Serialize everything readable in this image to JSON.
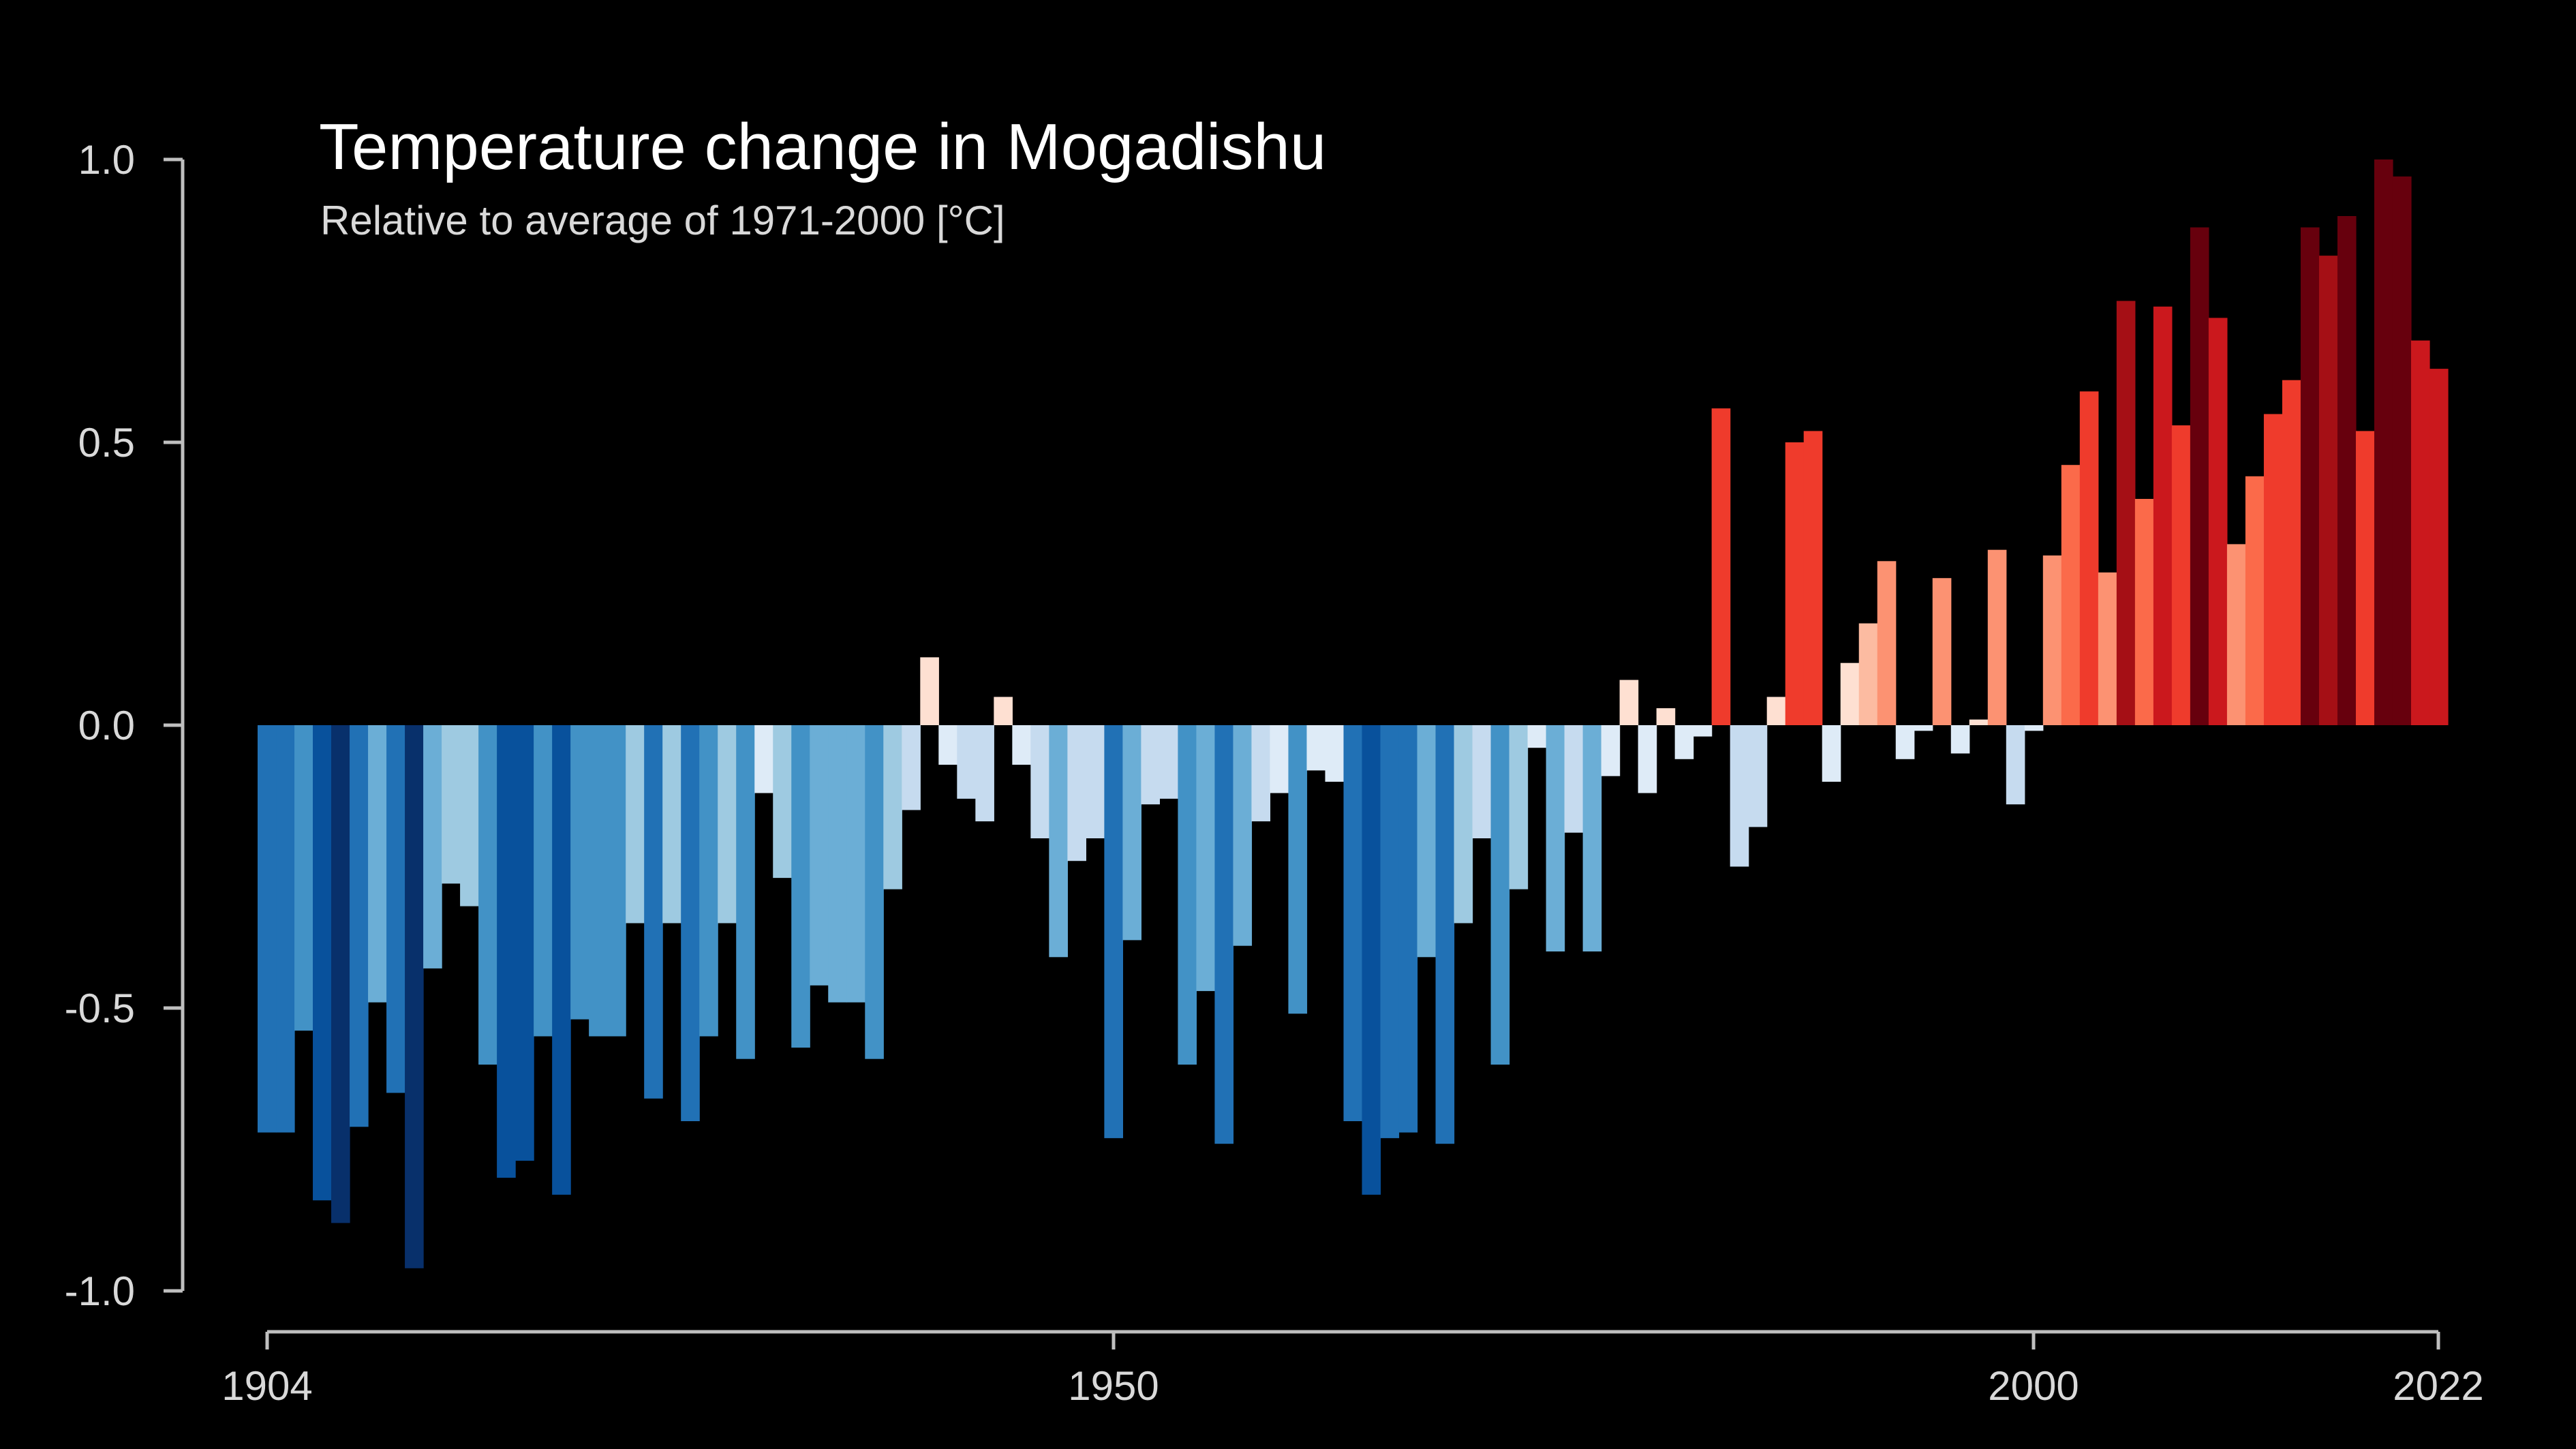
{
  "chart_data": {
    "type": "bar",
    "title": "Temperature change in Mogadishu",
    "subtitle": "Relative to average of 1971-2000  [°C]",
    "xlabel": "",
    "ylabel": "",
    "x_start": 1904,
    "x_end": 2022,
    "ylim": [
      -1.0,
      1.0
    ],
    "y_ticks": [
      "1.0",
      "0.5",
      "0.0",
      "-0.5",
      "-1.0"
    ],
    "y_tick_values": [
      1.0,
      0.5,
      0.0,
      -0.5,
      -1.0
    ],
    "x_ticks": [
      "1904",
      "1950",
      "2000",
      "2022"
    ],
    "x_tick_values": [
      1904,
      1950,
      2000,
      2022
    ],
    "grid": false,
    "legend": "none",
    "color_scale": [
      "#08306b",
      "#08519c",
      "#2171b5",
      "#4292c6",
      "#6baed6",
      "#9ecae1",
      "#c6dbef",
      "#deebf7",
      "#fee0d2",
      "#fcbba1",
      "#fc9272",
      "#fb6a4a",
      "#ef3b2c",
      "#cb181d",
      "#a50f15",
      "#67000d"
    ],
    "values": [
      -0.72,
      -0.72,
      -0.54,
      -0.84,
      -0.88,
      -0.71,
      -0.49,
      -0.65,
      -0.96,
      -0.43,
      -0.28,
      -0.32,
      -0.6,
      -0.8,
      -0.77,
      -0.55,
      -0.83,
      -0.52,
      -0.55,
      -0.55,
      -0.35,
      -0.66,
      -0.35,
      -0.7,
      -0.55,
      -0.35,
      -0.59,
      -0.12,
      -0.27,
      -0.57,
      -0.46,
      -0.49,
      -0.49,
      -0.59,
      -0.29,
      -0.15,
      0.12,
      -0.07,
      -0.13,
      -0.17,
      0.05,
      -0.07,
      -0.2,
      -0.41,
      -0.24,
      -0.2,
      -0.73,
      -0.38,
      -0.14,
      -0.13,
      -0.6,
      -0.47,
      -0.74,
      -0.39,
      -0.17,
      -0.12,
      -0.51,
      -0.08,
      -0.1,
      -0.7,
      -0.83,
      -0.73,
      -0.72,
      -0.41,
      -0.74,
      -0.35,
      -0.2,
      -0.6,
      -0.29,
      -0.04,
      -0.4,
      -0.19,
      -0.4,
      -0.09,
      0.08,
      -0.12,
      0.03,
      -0.06,
      -0.02,
      0.56,
      -0.25,
      -0.18,
      0.05,
      0.5,
      0.52,
      -0.1,
      0.11,
      0.18,
      0.29,
      -0.06,
      -0.01,
      0.26,
      -0.05,
      0.01,
      0.31,
      -0.14,
      -0.01,
      0.3,
      0.46,
      0.59,
      0.27,
      0.75,
      0.4,
      0.74,
      0.53,
      0.88,
      0.72,
      0.32,
      0.44,
      0.55,
      0.61,
      0.88,
      0.83,
      0.9,
      0.52,
      1.0,
      0.97,
      0.68,
      0.63
    ]
  }
}
